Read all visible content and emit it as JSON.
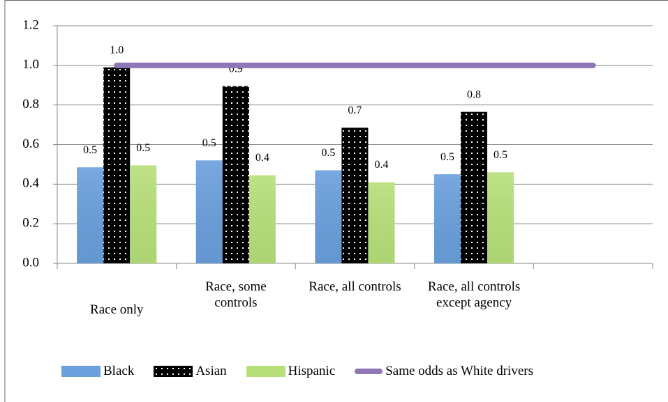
{
  "chart_data": {
    "type": "bar",
    "categories": [
      "Race only",
      "Race, some controls",
      "Race, all controls",
      "Race, all controls except agency",
      null
    ],
    "series": [
      {
        "name": "Black",
        "color": "#6a9fdc",
        "values": [
          0.485,
          0.52,
          0.47,
          0.45,
          null
        ],
        "value_labels": [
          "0.5",
          "0.5",
          "0.5",
          "0.5",
          null
        ]
      },
      {
        "name": "Asian",
        "color": "#000000",
        "pattern": "dots",
        "values": [
          0.99,
          0.895,
          0.685,
          0.765,
          null
        ],
        "value_labels": [
          "1.0",
          "0.9",
          "0.7",
          "0.8",
          null
        ]
      },
      {
        "name": "Hispanic",
        "color": "#b7e07a",
        "values": [
          0.495,
          0.445,
          0.41,
          0.46,
          null
        ],
        "value_labels": [
          "0.5",
          "0.4",
          "0.4",
          "0.5",
          null
        ]
      },
      {
        "name": "Same odds as White drivers",
        "type": "line",
        "color": "#8f77b5",
        "values": [
          1.0,
          1.0,
          1.0,
          1.0,
          1.0
        ]
      }
    ],
    "ylim": [
      0,
      1.2
    ],
    "yticks": [
      {
        "value": 0,
        "label": "0.0"
      },
      0.2,
      0.4,
      0.6,
      0.8,
      {
        "value": 1,
        "label": "1.0"
      },
      1.2
    ],
    "grid": true,
    "legend": "bottom"
  }
}
